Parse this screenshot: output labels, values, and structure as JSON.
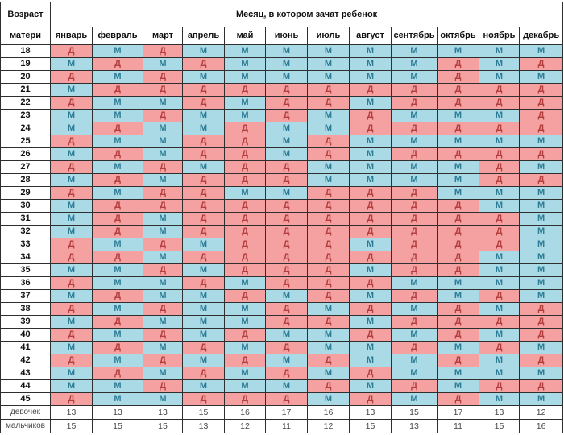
{
  "colors": {
    "girl_bg": "#f5a1a1",
    "girl_text": "#b43e3e",
    "boy_bg": "#aadae6",
    "boy_text": "#2c7c96",
    "grid": "#2f2f2f",
    "header_text": "#111111",
    "summary_text": "#474747"
  },
  "chart_data": {
    "type": "table",
    "title": "Месяц, в котором зачат ребенок",
    "corner_top": "Возраст",
    "corner_bottom": "матери",
    "girl_letter": "Д",
    "boy_letter": "М",
    "columns": [
      "январь",
      "февраль",
      "март",
      "апрель",
      "май",
      "июнь",
      "июль",
      "август",
      "сентябрь",
      "октябрь",
      "ноябрь",
      "декабрь"
    ],
    "rows": [
      {
        "age": "18",
        "values": [
          "Д",
          "М",
          "Д",
          "М",
          "М",
          "М",
          "М",
          "М",
          "М",
          "М",
          "М",
          "М"
        ]
      },
      {
        "age": "19",
        "values": [
          "М",
          "Д",
          "М",
          "Д",
          "М",
          "М",
          "М",
          "М",
          "М",
          "Д",
          "М",
          "Д"
        ]
      },
      {
        "age": "20",
        "values": [
          "Д",
          "М",
          "Д",
          "М",
          "М",
          "М",
          "М",
          "М",
          "М",
          "Д",
          "М",
          "М"
        ]
      },
      {
        "age": "21",
        "values": [
          "М",
          "Д",
          "Д",
          "Д",
          "Д",
          "Д",
          "Д",
          "Д",
          "Д",
          "Д",
          "Д",
          "Д"
        ]
      },
      {
        "age": "22",
        "values": [
          "Д",
          "М",
          "М",
          "Д",
          "М",
          "Д",
          "Д",
          "М",
          "Д",
          "Д",
          "Д",
          "Д"
        ]
      },
      {
        "age": "23",
        "values": [
          "М",
          "М",
          "Д",
          "М",
          "М",
          "Д",
          "М",
          "Д",
          "М",
          "М",
          "М",
          "Д"
        ]
      },
      {
        "age": "24",
        "values": [
          "М",
          "Д",
          "М",
          "М",
          "Д",
          "М",
          "М",
          "Д",
          "Д",
          "Д",
          "Д",
          "Д"
        ]
      },
      {
        "age": "25",
        "values": [
          "Д",
          "М",
          "М",
          "Д",
          "Д",
          "М",
          "Д",
          "М",
          "М",
          "М",
          "М",
          "М"
        ]
      },
      {
        "age": "26",
        "values": [
          "М",
          "Д",
          "М",
          "Д",
          "Д",
          "М",
          "Д",
          "М",
          "Д",
          "Д",
          "Д",
          "Д"
        ]
      },
      {
        "age": "27",
        "values": [
          "Д",
          "М",
          "Д",
          "М",
          "Д",
          "Д",
          "М",
          "М",
          "М",
          "М",
          "Д",
          "М"
        ]
      },
      {
        "age": "28",
        "values": [
          "М",
          "Д",
          "М",
          "Д",
          "Д",
          "Д",
          "М",
          "М",
          "М",
          "М",
          "Д",
          "Д"
        ]
      },
      {
        "age": "29",
        "values": [
          "Д",
          "М",
          "Д",
          "Д",
          "М",
          "М",
          "Д",
          "Д",
          "Д",
          "М",
          "М",
          "М"
        ]
      },
      {
        "age": "30",
        "values": [
          "М",
          "Д",
          "Д",
          "Д",
          "Д",
          "Д",
          "Д",
          "Д",
          "Д",
          "Д",
          "М",
          "М"
        ]
      },
      {
        "age": "31",
        "values": [
          "М",
          "Д",
          "М",
          "Д",
          "Д",
          "Д",
          "Д",
          "Д",
          "Д",
          "Д",
          "Д",
          "М"
        ]
      },
      {
        "age": "32",
        "values": [
          "М",
          "Д",
          "М",
          "Д",
          "Д",
          "Д",
          "Д",
          "Д",
          "Д",
          "Д",
          "Д",
          "М"
        ]
      },
      {
        "age": "33",
        "values": [
          "Д",
          "М",
          "Д",
          "М",
          "Д",
          "Д",
          "Д",
          "М",
          "Д",
          "Д",
          "Д",
          "М"
        ]
      },
      {
        "age": "34",
        "values": [
          "Д",
          "Д",
          "М",
          "Д",
          "Д",
          "Д",
          "Д",
          "Д",
          "Д",
          "Д",
          "М",
          "М"
        ]
      },
      {
        "age": "35",
        "values": [
          "М",
          "М",
          "Д",
          "М",
          "Д",
          "Д",
          "Д",
          "М",
          "Д",
          "Д",
          "М",
          "М"
        ]
      },
      {
        "age": "36",
        "values": [
          "Д",
          "М",
          "М",
          "Д",
          "М",
          "Д",
          "Д",
          "Д",
          "М",
          "М",
          "М",
          "М"
        ]
      },
      {
        "age": "37",
        "values": [
          "М",
          "Д",
          "М",
          "М",
          "Д",
          "М",
          "Д",
          "М",
          "Д",
          "М",
          "Д",
          "М"
        ]
      },
      {
        "age": "38",
        "values": [
          "Д",
          "М",
          "Д",
          "М",
          "М",
          "Д",
          "М",
          "Д",
          "М",
          "Д",
          "М",
          "Д"
        ]
      },
      {
        "age": "39",
        "values": [
          "М",
          "Д",
          "М",
          "М",
          "М",
          "Д",
          "Д",
          "М",
          "Д",
          "Д",
          "Д",
          "Д"
        ]
      },
      {
        "age": "40",
        "values": [
          "Д",
          "М",
          "Д",
          "М",
          "Д",
          "М",
          "М",
          "Д",
          "М",
          "Д",
          "М",
          "Д"
        ]
      },
      {
        "age": "41",
        "values": [
          "М",
          "Д",
          "М",
          "Д",
          "М",
          "Д",
          "М",
          "М",
          "Д",
          "М",
          "Д",
          "М"
        ]
      },
      {
        "age": "42",
        "values": [
          "Д",
          "М",
          "Д",
          "М",
          "Д",
          "М",
          "Д",
          "М",
          "М",
          "Д",
          "М",
          "Д"
        ]
      },
      {
        "age": "43",
        "values": [
          "М",
          "Д",
          "М",
          "Д",
          "М",
          "Д",
          "М",
          "Д",
          "М",
          "М",
          "М",
          "М"
        ]
      },
      {
        "age": "44",
        "values": [
          "М",
          "М",
          "Д",
          "М",
          "М",
          "М",
          "Д",
          "М",
          "Д",
          "М",
          "Д",
          "Д"
        ]
      },
      {
        "age": "45",
        "values": [
          "Д",
          "М",
          "М",
          "Д",
          "Д",
          "Д",
          "М",
          "Д",
          "М",
          "Д",
          "М",
          "М"
        ]
      }
    ],
    "summary_rows": [
      {
        "label": "девочек",
        "values": [
          "13",
          "13",
          "13",
          "15",
          "16",
          "17",
          "16",
          "13",
          "15",
          "17",
          "13",
          "12"
        ]
      },
      {
        "label": "мальчиков",
        "values": [
          "15",
          "15",
          "15",
          "13",
          "12",
          "11",
          "12",
          "15",
          "13",
          "11",
          "15",
          "16"
        ]
      }
    ]
  }
}
